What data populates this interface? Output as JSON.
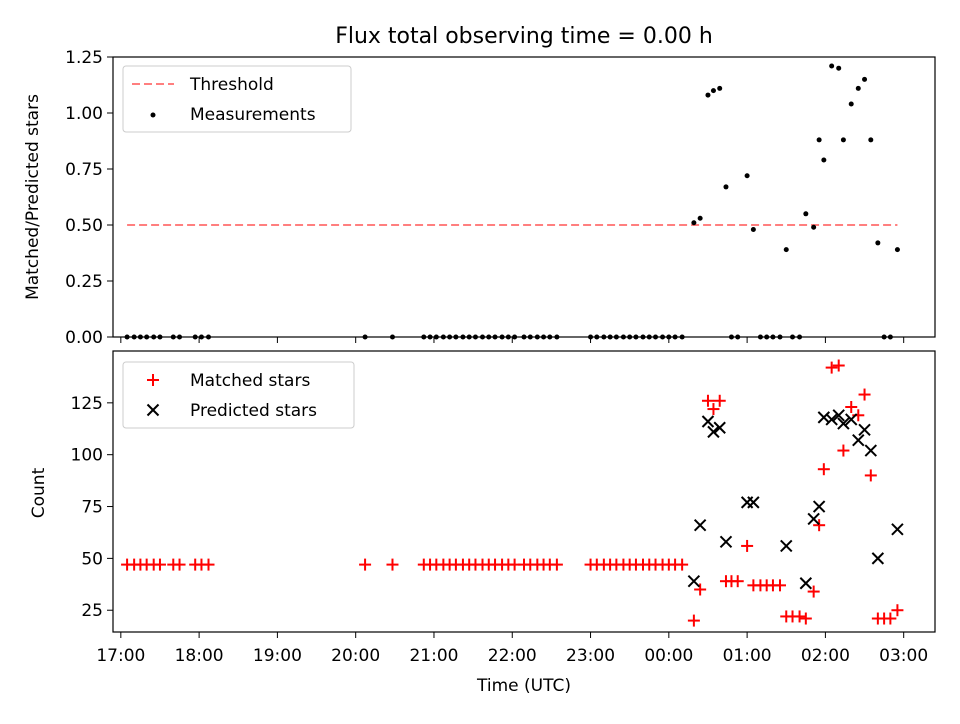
{
  "chart_data": [
    {
      "type": "scatter",
      "title": "Flux total observing time = 0.00 h",
      "ylabel": "Matched/Predicted stars",
      "xlabel": "",
      "ylim": [
        0,
        1.25
      ],
      "yticks": [
        "0.00",
        "0.25",
        "0.50",
        "0.75",
        "1.00",
        "1.25"
      ],
      "grid": false,
      "legend": "top-left",
      "threshold": {
        "name": "Threshold",
        "x": [
          17.08,
          26.92
        ],
        "value": 0.5,
        "color": "#ff7f7f"
      },
      "series": [
        {
          "name": "Measurements",
          "color": "#000000",
          "points": [
            [
              17.08,
              0
            ],
            [
              17.17,
              0
            ],
            [
              17.25,
              0
            ],
            [
              17.33,
              0
            ],
            [
              17.42,
              0
            ],
            [
              17.5,
              0
            ],
            [
              17.67,
              0
            ],
            [
              17.75,
              0
            ],
            [
              17.95,
              0
            ],
            [
              18.03,
              0
            ],
            [
              18.12,
              0
            ],
            [
              20.12,
              0
            ],
            [
              20.47,
              0
            ],
            [
              20.87,
              0
            ],
            [
              20.95,
              0
            ],
            [
              21.03,
              0
            ],
            [
              21.12,
              0
            ],
            [
              21.2,
              0
            ],
            [
              21.28,
              0
            ],
            [
              21.37,
              0
            ],
            [
              21.45,
              0
            ],
            [
              21.53,
              0
            ],
            [
              21.62,
              0
            ],
            [
              21.7,
              0
            ],
            [
              21.78,
              0
            ],
            [
              21.87,
              0
            ],
            [
              21.95,
              0
            ],
            [
              22.03,
              0
            ],
            [
              22.15,
              0
            ],
            [
              22.23,
              0
            ],
            [
              22.32,
              0
            ],
            [
              22.4,
              0
            ],
            [
              22.48,
              0
            ],
            [
              22.57,
              0
            ],
            [
              23.0,
              0
            ],
            [
              23.08,
              0
            ],
            [
              23.17,
              0
            ],
            [
              23.25,
              0
            ],
            [
              23.33,
              0
            ],
            [
              23.42,
              0
            ],
            [
              23.5,
              0
            ],
            [
              23.58,
              0
            ],
            [
              23.67,
              0
            ],
            [
              23.75,
              0
            ],
            [
              23.83,
              0
            ],
            [
              23.92,
              0
            ],
            [
              24.0,
              0
            ],
            [
              24.08,
              0
            ],
            [
              24.17,
              0
            ],
            [
              24.32,
              0.51
            ],
            [
              24.4,
              0.53
            ],
            [
              24.5,
              1.08
            ],
            [
              24.57,
              1.1
            ],
            [
              24.65,
              1.11
            ],
            [
              24.73,
              0.67
            ],
            [
              24.8,
              0
            ],
            [
              24.88,
              0
            ],
            [
              25.0,
              0.72
            ],
            [
              25.08,
              0.48
            ],
            [
              25.17,
              0
            ],
            [
              25.25,
              0
            ],
            [
              25.33,
              0
            ],
            [
              25.42,
              0
            ],
            [
              25.5,
              0.39
            ],
            [
              25.58,
              0
            ],
            [
              25.67,
              0
            ],
            [
              25.75,
              0.55
            ],
            [
              25.85,
              0.49
            ],
            [
              25.92,
              0.88
            ],
            [
              25.98,
              0.79
            ],
            [
              26.08,
              1.21
            ],
            [
              26.17,
              1.2
            ],
            [
              26.23,
              0.88
            ],
            [
              26.33,
              1.04
            ],
            [
              26.42,
              1.11
            ],
            [
              26.5,
              1.15
            ],
            [
              26.58,
              0.88
            ],
            [
              26.67,
              0.42
            ],
            [
              26.75,
              0
            ],
            [
              26.83,
              0
            ],
            [
              26.92,
              0.39
            ]
          ]
        }
      ]
    },
    {
      "type": "scatter",
      "title": "",
      "ylabel": "Count",
      "xlabel": "Time (UTC)",
      "ylim": [
        14.5,
        150
      ],
      "yticks": [
        "25",
        "50",
        "75",
        "100",
        "125"
      ],
      "xlim": [
        16.9,
        27.4
      ],
      "xticks": [
        "17:00",
        "18:00",
        "19:00",
        "20:00",
        "21:00",
        "22:00",
        "23:00",
        "00:00",
        "01:00",
        "02:00",
        "03:00"
      ],
      "grid": false,
      "legend": "top-left",
      "series": [
        {
          "name": "Matched stars",
          "color": "#ff0000",
          "marker": "+",
          "points": [
            [
              17.08,
              47
            ],
            [
              17.17,
              47
            ],
            [
              17.25,
              47
            ],
            [
              17.33,
              47
            ],
            [
              17.42,
              47
            ],
            [
              17.5,
              47
            ],
            [
              17.67,
              47
            ],
            [
              17.75,
              47
            ],
            [
              17.95,
              47
            ],
            [
              18.03,
              47
            ],
            [
              18.12,
              47
            ],
            [
              20.12,
              47
            ],
            [
              20.47,
              47
            ],
            [
              20.87,
              47
            ],
            [
              20.95,
              47
            ],
            [
              21.03,
              47
            ],
            [
              21.12,
              47
            ],
            [
              21.2,
              47
            ],
            [
              21.28,
              47
            ],
            [
              21.37,
              47
            ],
            [
              21.45,
              47
            ],
            [
              21.53,
              47
            ],
            [
              21.62,
              47
            ],
            [
              21.7,
              47
            ],
            [
              21.78,
              47
            ],
            [
              21.87,
              47
            ],
            [
              21.95,
              47
            ],
            [
              22.03,
              47
            ],
            [
              22.15,
              47
            ],
            [
              22.23,
              47
            ],
            [
              22.32,
              47
            ],
            [
              22.4,
              47
            ],
            [
              22.48,
              47
            ],
            [
              22.57,
              47
            ],
            [
              23.0,
              47
            ],
            [
              23.08,
              47
            ],
            [
              23.17,
              47
            ],
            [
              23.25,
              47
            ],
            [
              23.33,
              47
            ],
            [
              23.42,
              47
            ],
            [
              23.5,
              47
            ],
            [
              23.58,
              47
            ],
            [
              23.67,
              47
            ],
            [
              23.75,
              47
            ],
            [
              23.83,
              47
            ],
            [
              23.92,
              47
            ],
            [
              24.0,
              47
            ],
            [
              24.08,
              47
            ],
            [
              24.17,
              47
            ],
            [
              24.32,
              20
            ],
            [
              24.4,
              35
            ],
            [
              24.5,
              126
            ],
            [
              24.57,
              122
            ],
            [
              24.65,
              126
            ],
            [
              24.73,
              39
            ],
            [
              24.8,
              39
            ],
            [
              24.88,
              39
            ],
            [
              25.0,
              56
            ],
            [
              25.08,
              37
            ],
            [
              25.17,
              37
            ],
            [
              25.25,
              37
            ],
            [
              25.33,
              37
            ],
            [
              25.42,
              37
            ],
            [
              25.5,
              22
            ],
            [
              25.58,
              22
            ],
            [
              25.67,
              22
            ],
            [
              25.75,
              21
            ],
            [
              25.85,
              34
            ],
            [
              25.92,
              66
            ],
            [
              25.98,
              93
            ],
            [
              26.08,
              142
            ],
            [
              26.17,
              143
            ],
            [
              26.23,
              102
            ],
            [
              26.33,
              123
            ],
            [
              26.42,
              119
            ],
            [
              26.5,
              129
            ],
            [
              26.58,
              90
            ],
            [
              26.67,
              21
            ],
            [
              26.75,
              21
            ],
            [
              26.83,
              21
            ],
            [
              26.92,
              25
            ]
          ]
        },
        {
          "name": "Predicted stars",
          "color": "#000000",
          "marker": "x",
          "points": [
            [
              24.32,
              39
            ],
            [
              24.4,
              66
            ],
            [
              24.5,
              116
            ],
            [
              24.57,
              111
            ],
            [
              24.65,
              113
            ],
            [
              24.73,
              58
            ],
            [
              25.0,
              77
            ],
            [
              25.08,
              77
            ],
            [
              25.5,
              56
            ],
            [
              25.75,
              38
            ],
            [
              25.85,
              69
            ],
            [
              25.92,
              75
            ],
            [
              25.98,
              118
            ],
            [
              26.08,
              117
            ],
            [
              26.17,
              119
            ],
            [
              26.23,
              115
            ],
            [
              26.33,
              117
            ],
            [
              26.42,
              107
            ],
            [
              26.5,
              112
            ],
            [
              26.58,
              102
            ],
            [
              26.67,
              50
            ],
            [
              26.92,
              64
            ]
          ]
        }
      ]
    }
  ]
}
